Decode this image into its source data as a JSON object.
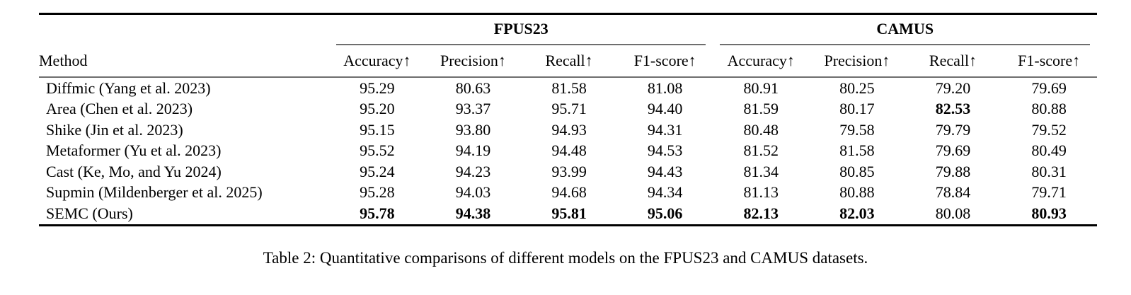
{
  "table": {
    "group_headers": [
      {
        "label": "FPUS23"
      },
      {
        "label": "CAMUS"
      }
    ],
    "method_header": "Method",
    "metric_headers": [
      "Accuracy↑",
      "Precision↑",
      "Recall↑",
      "F1-score↑"
    ],
    "rows": [
      {
        "method": "Diffmic (Yang et al. 2023)",
        "values": [
          "95.29",
          "80.63",
          "81.58",
          "81.08",
          "80.91",
          "80.25",
          "79.20",
          "79.69"
        ]
      },
      {
        "method": "Area (Chen et al. 2023)",
        "values": [
          "95.20",
          "93.37",
          "95.71",
          "94.40",
          "81.59",
          "80.17",
          "82.53",
          "80.88"
        ]
      },
      {
        "method": "Shike (Jin et al. 2023)",
        "values": [
          "95.15",
          "93.80",
          "94.93",
          "94.31",
          "80.48",
          "79.58",
          "79.79",
          "79.52"
        ]
      },
      {
        "method": "Metaformer (Yu et al. 2023)",
        "values": [
          "95.52",
          "94.19",
          "94.48",
          "94.53",
          "81.52",
          "81.58",
          "79.69",
          "80.49"
        ]
      },
      {
        "method": "Cast (Ke, Mo, and Yu 2024)",
        "values": [
          "95.24",
          "94.23",
          "93.99",
          "94.43",
          "81.34",
          "80.85",
          "79.88",
          "80.31"
        ]
      },
      {
        "method": "Supmin (Mildenberger et al. 2025)",
        "values": [
          "95.28",
          "94.03",
          "94.68",
          "94.34",
          "81.13",
          "80.88",
          "78.84",
          "79.71"
        ]
      },
      {
        "method": "SEMC (Ours)",
        "values": [
          "95.78",
          "94.38",
          "95.81",
          "95.06",
          "82.13",
          "82.03",
          "80.08",
          "80.93"
        ]
      }
    ],
    "bold_cells": {
      "1": [
        6
      ],
      "6": [
        0,
        1,
        2,
        3,
        4,
        5,
        7
      ]
    }
  },
  "caption": "Table 2: Quantitative comparisons of different models on the FPUS23 and CAMUS datasets."
}
